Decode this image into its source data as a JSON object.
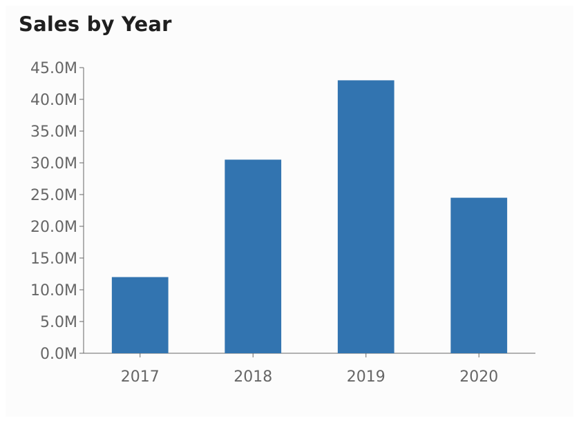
{
  "title": "Sales by Year",
  "chart_data": {
    "type": "bar",
    "title": "Sales by Year",
    "categories": [
      "2017",
      "2018",
      "2019",
      "2020"
    ],
    "values": [
      12000000,
      30500000,
      43000000,
      24500000
    ],
    "yticks": [
      "0.0M",
      "5.0M",
      "10.0M",
      "15.0M",
      "20.0M",
      "25.0M",
      "30.0M",
      "35.0M",
      "40.0M",
      "45.0M"
    ],
    "ylim": [
      0,
      45000000
    ],
    "xlabel": "",
    "ylabel": "",
    "grid": false,
    "legend": "none",
    "bar_color": "#3274b0"
  }
}
